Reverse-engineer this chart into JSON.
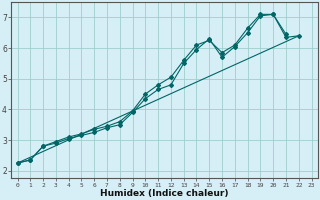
{
  "xlabel": "Humidex (Indice chaleur)",
  "bg_color": "#d6eef5",
  "line_color": "#006666",
  "grid_color": "#9ecfcc",
  "xlim": [
    -0.5,
    23.5
  ],
  "ylim": [
    1.75,
    7.5
  ],
  "xticks": [
    0,
    1,
    2,
    3,
    4,
    5,
    6,
    7,
    8,
    9,
    10,
    11,
    12,
    13,
    14,
    15,
    16,
    17,
    18,
    19,
    20,
    21,
    22,
    23
  ],
  "yticks": [
    2,
    3,
    4,
    5,
    6,
    7
  ],
  "lines": [
    {
      "x": [
        0,
        1,
        2,
        3,
        4,
        5,
        6,
        7,
        8,
        9,
        10,
        11,
        12,
        13,
        14,
        15,
        16,
        17,
        18,
        19,
        20,
        21,
        22
      ],
      "y": [
        2.25,
        2.35,
        2.8,
        2.9,
        3.05,
        3.15,
        3.25,
        3.4,
        3.5,
        3.9,
        4.35,
        4.65,
        4.8,
        5.5,
        5.95,
        6.3,
        5.7,
        6.05,
        6.5,
        7.05,
        7.1,
        6.35,
        6.4
      ],
      "marker": true
    },
    {
      "x": [
        0,
        1,
        2,
        3,
        4,
        5,
        6,
        7,
        8,
        9,
        10,
        11,
        12,
        13,
        14,
        15,
        16,
        17,
        18,
        19,
        20,
        21
      ],
      "y": [
        2.25,
        2.35,
        2.8,
        2.95,
        3.1,
        3.2,
        3.35,
        3.45,
        3.6,
        3.95,
        4.5,
        4.8,
        5.05,
        5.6,
        6.1,
        6.25,
        5.85,
        6.1,
        6.65,
        7.1,
        7.1,
        6.45
      ],
      "marker": true
    },
    {
      "x": [
        0,
        22
      ],
      "y": [
        2.25,
        6.4
      ],
      "marker": false
    }
  ]
}
